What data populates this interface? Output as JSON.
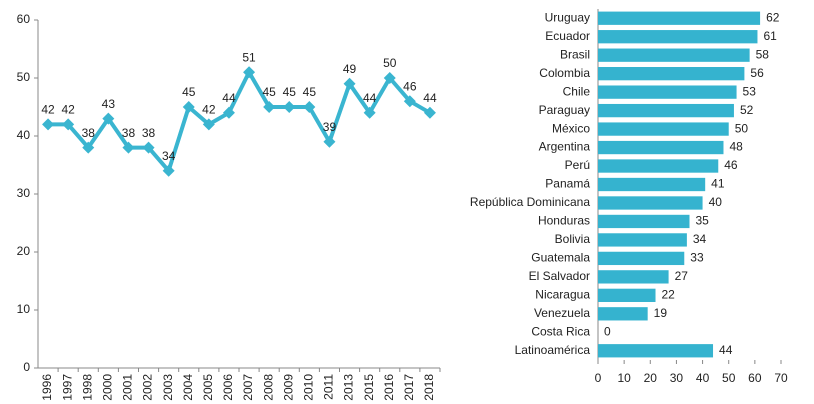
{
  "chart_data": [
    {
      "type": "line",
      "categories": [
        "1996",
        "1997",
        "1998",
        "2000",
        "2001",
        "2002",
        "2003",
        "2004",
        "2005",
        "2006",
        "2007",
        "2008",
        "2009",
        "2010",
        "2011",
        "2013",
        "2015",
        "2016",
        "2017",
        "2018"
      ],
      "values": [
        42,
        42,
        38,
        43,
        38,
        38,
        34,
        45,
        42,
        44,
        51,
        45,
        45,
        45,
        39,
        49,
        44,
        50,
        46,
        44
      ],
      "color": "#3ab5d0",
      "ylim": [
        0,
        60
      ],
      "yticks": [
        0,
        10,
        20,
        30,
        40,
        50,
        60
      ],
      "grid": false
    },
    {
      "type": "hbar",
      "categories": [
        "Uruguay",
        "Ecuador",
        "Brasil",
        "Colombia",
        "Chile",
        "Paraguay",
        "México",
        "Argentina",
        "Perú",
        "Panamá",
        "República Dominicana",
        "Honduras",
        "Bolivia",
        "Guatemala",
        "El Salvador",
        "Nicaragua",
        "Venezuela",
        "Costa Rica",
        "Latinoamérica"
      ],
      "values": [
        62,
        61,
        58,
        56,
        53,
        52,
        50,
        48,
        46,
        41,
        40,
        35,
        34,
        33,
        27,
        22,
        19,
        0,
        44
      ],
      "color": "#35b3cf",
      "xlim": [
        0,
        70
      ],
      "xticks": [
        0,
        10,
        20,
        30,
        40,
        50,
        60,
        70
      ],
      "grid": false
    }
  ]
}
